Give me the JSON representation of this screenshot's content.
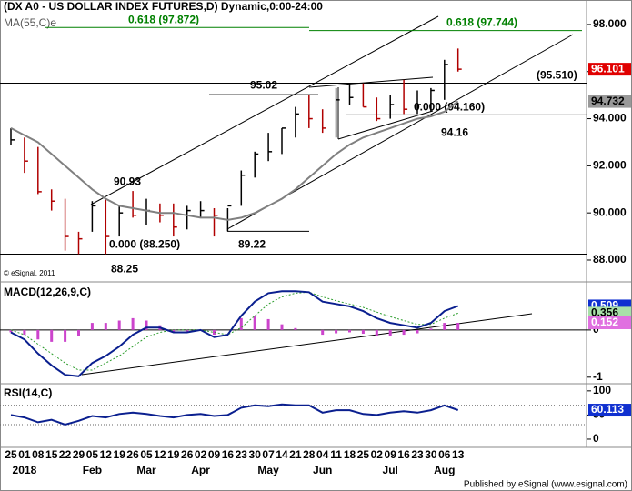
{
  "chart_data": [
    {
      "type": "ohlc",
      "title": "(DX A0 - US DOLLAR INDEX FUTURES,D) Dynamic,0:00-24:00",
      "categories": [
        "25",
        "01",
        "08",
        "15",
        "22",
        "29",
        "05",
        "12",
        "19",
        "26",
        "05",
        "12",
        "19",
        "26",
        "02",
        "09",
        "16",
        "23",
        "30",
        "07",
        "14",
        "21",
        "28",
        "04",
        "11",
        "18",
        "25",
        "02",
        "09",
        "16",
        "23",
        "30",
        "06",
        "13"
      ],
      "months": [
        null,
        "2018",
        null,
        null,
        null,
        null,
        "Feb",
        null,
        null,
        null,
        "Mar",
        null,
        null,
        null,
        "Apr",
        null,
        null,
        null,
        null,
        "May",
        null,
        null,
        null,
        "Jun",
        null,
        null,
        null,
        null,
        "Jul",
        null,
        null,
        null,
        "Aug",
        null
      ],
      "high": [
        93.6,
        93.2,
        92.8,
        91.0,
        90.6,
        89.2,
        90.5,
        90.6,
        90.3,
        90.93,
        90.6,
        90.4,
        90.4,
        90.3,
        90.5,
        90.2,
        90.2,
        91.8,
        92.6,
        93.4,
        93.6,
        94.5,
        95.02,
        94.4,
        95.3,
        95.5,
        95.5,
        94.9,
        95.0,
        95.65,
        95.2,
        95.3,
        96.5,
        96.98
      ],
      "low": [
        92.9,
        91.7,
        90.8,
        90.1,
        88.4,
        88.25,
        89.2,
        88.25,
        89.0,
        89.8,
        89.5,
        89.6,
        89.0,
        89.3,
        89.8,
        89.0,
        89.22,
        90.3,
        91.5,
        92.2,
        92.5,
        93.2,
        93.6,
        93.4,
        93.2,
        94.6,
        94.5,
        93.9,
        94.0,
        94.2,
        94.2,
        94.3,
        94.8,
        96.0
      ],
      "close": [
        93.1,
        92.2,
        90.9,
        90.5,
        89.0,
        88.9,
        90.3,
        89.0,
        90.0,
        89.9,
        90.1,
        89.9,
        89.4,
        90.1,
        90.1,
        89.9,
        90.3,
        91.6,
        92.5,
        92.6,
        93.6,
        94.2,
        94.0,
        93.6,
        94.8,
        94.9,
        94.5,
        94.0,
        94.6,
        94.4,
        94.6,
        95.2,
        96.3,
        96.101
      ],
      "series": [
        {
          "name": "MA(55,C)e",
          "color": "#808080",
          "values": [
            93.6,
            93.3,
            93.0,
            92.5,
            92.0,
            91.5,
            91.0,
            90.6,
            90.3,
            90.2,
            90.1,
            90.0,
            90.0,
            89.9,
            89.8,
            89.8,
            89.7,
            89.8,
            90.0,
            90.3,
            90.6,
            91.0,
            91.5,
            92.0,
            92.5,
            92.9,
            93.2,
            93.4,
            93.6,
            93.8,
            94.0,
            94.1,
            94.3,
            94.732
          ]
        }
      ],
      "ylim": [
        87.15,
        99.04
      ],
      "yticks": [
        {
          "value": 98,
          "label": "98.000"
        },
        {
          "value": 96,
          "label": "96.000"
        },
        {
          "value": 94,
          "label": "94.000"
        },
        {
          "value": 92,
          "label": "92.000"
        },
        {
          "value": 90,
          "label": "90.000"
        },
        {
          "value": 88,
          "label": "88.000"
        }
      ],
      "annotations": [
        {
          "text": "0.618 (97.872)",
          "value": 97.872,
          "color": "#008000"
        },
        {
          "text": "0.618 (97.744)",
          "value": 97.744,
          "color": "#008000"
        },
        {
          "text": "95.02",
          "value": 95.02,
          "color": "#000000"
        },
        {
          "text": "(95.510)",
          "value": 95.51,
          "color": "#000000"
        },
        {
          "text": "0.000 (94.160)",
          "value": 94.16,
          "color": "#000000"
        },
        {
          "text": "94.16",
          "value": 94.16,
          "color": "#000000"
        },
        {
          "text": "90.93",
          "value": 90.93,
          "color": "#000000"
        },
        {
          "text": "0.000 (88.250)",
          "value": 88.25,
          "color": "#000000"
        },
        {
          "text": "89.22",
          "value": 89.22,
          "color": "#000000"
        },
        {
          "text": "88.25",
          "value": 88.25,
          "color": "#000000"
        }
      ]
    },
    {
      "type": "macd",
      "title": "MACD(12,26,9,C)",
      "series": [
        {
          "name": "MACD",
          "color": "#0a1f8f",
          "values": [
            -0.05,
            -0.2,
            -0.5,
            -0.75,
            -0.95,
            -0.98,
            -0.7,
            -0.55,
            -0.35,
            -0.1,
            0.05,
            0.05,
            -0.05,
            -0.05,
            0.0,
            -0.15,
            -0.1,
            0.3,
            0.6,
            0.78,
            0.82,
            0.82,
            0.8,
            0.6,
            0.55,
            0.5,
            0.4,
            0.25,
            0.15,
            0.1,
            0.05,
            0.15,
            0.4,
            0.509
          ]
        },
        {
          "name": "Signal",
          "color": "#2e9e2e",
          "values": [
            0.0,
            -0.1,
            -0.3,
            -0.5,
            -0.7,
            -0.85,
            -0.85,
            -0.7,
            -0.55,
            -0.35,
            -0.15,
            -0.05,
            0.0,
            0.0,
            0.0,
            -0.05,
            -0.1,
            0.05,
            0.3,
            0.55,
            0.7,
            0.78,
            0.8,
            0.7,
            0.62,
            0.55,
            0.48,
            0.38,
            0.28,
            0.2,
            0.12,
            0.12,
            0.25,
            0.356
          ]
        },
        {
          "name": "Histogram",
          "color": "#cc44cc",
          "values": [
            -0.05,
            -0.1,
            -0.2,
            -0.25,
            -0.25,
            -0.13,
            0.15,
            0.15,
            0.2,
            0.25,
            0.2,
            0.1,
            -0.05,
            -0.05,
            0.0,
            -0.1,
            0.0,
            0.25,
            0.3,
            0.23,
            0.12,
            0.04,
            0.0,
            -0.1,
            -0.07,
            -0.05,
            -0.08,
            -0.13,
            -0.13,
            -0.1,
            -0.07,
            0.03,
            0.15,
            0.152
          ]
        }
      ],
      "ylim": [
        -1.1,
        0.98
      ],
      "yticks": [
        0,
        -1
      ]
    },
    {
      "type": "rsi",
      "title": "RSI(14,C)",
      "series": [
        {
          "name": "RSI",
          "color": "#0a1f8f",
          "values": [
            50,
            45,
            35,
            40,
            30,
            38,
            48,
            45,
            52,
            55,
            52,
            48,
            45,
            50,
            52,
            48,
            50,
            65,
            70,
            68,
            72,
            70,
            70,
            55,
            60,
            60,
            52,
            50,
            55,
            58,
            55,
            60,
            70,
            60.113
          ]
        }
      ],
      "levels": [
        70,
        30
      ],
      "ylim": [
        -17,
        111
      ],
      "yticks": [
        100,
        50,
        0
      ]
    }
  ],
  "credit": "© eSignal, 2011",
  "footer": "Published by eSignal (www.esignal.com)"
}
